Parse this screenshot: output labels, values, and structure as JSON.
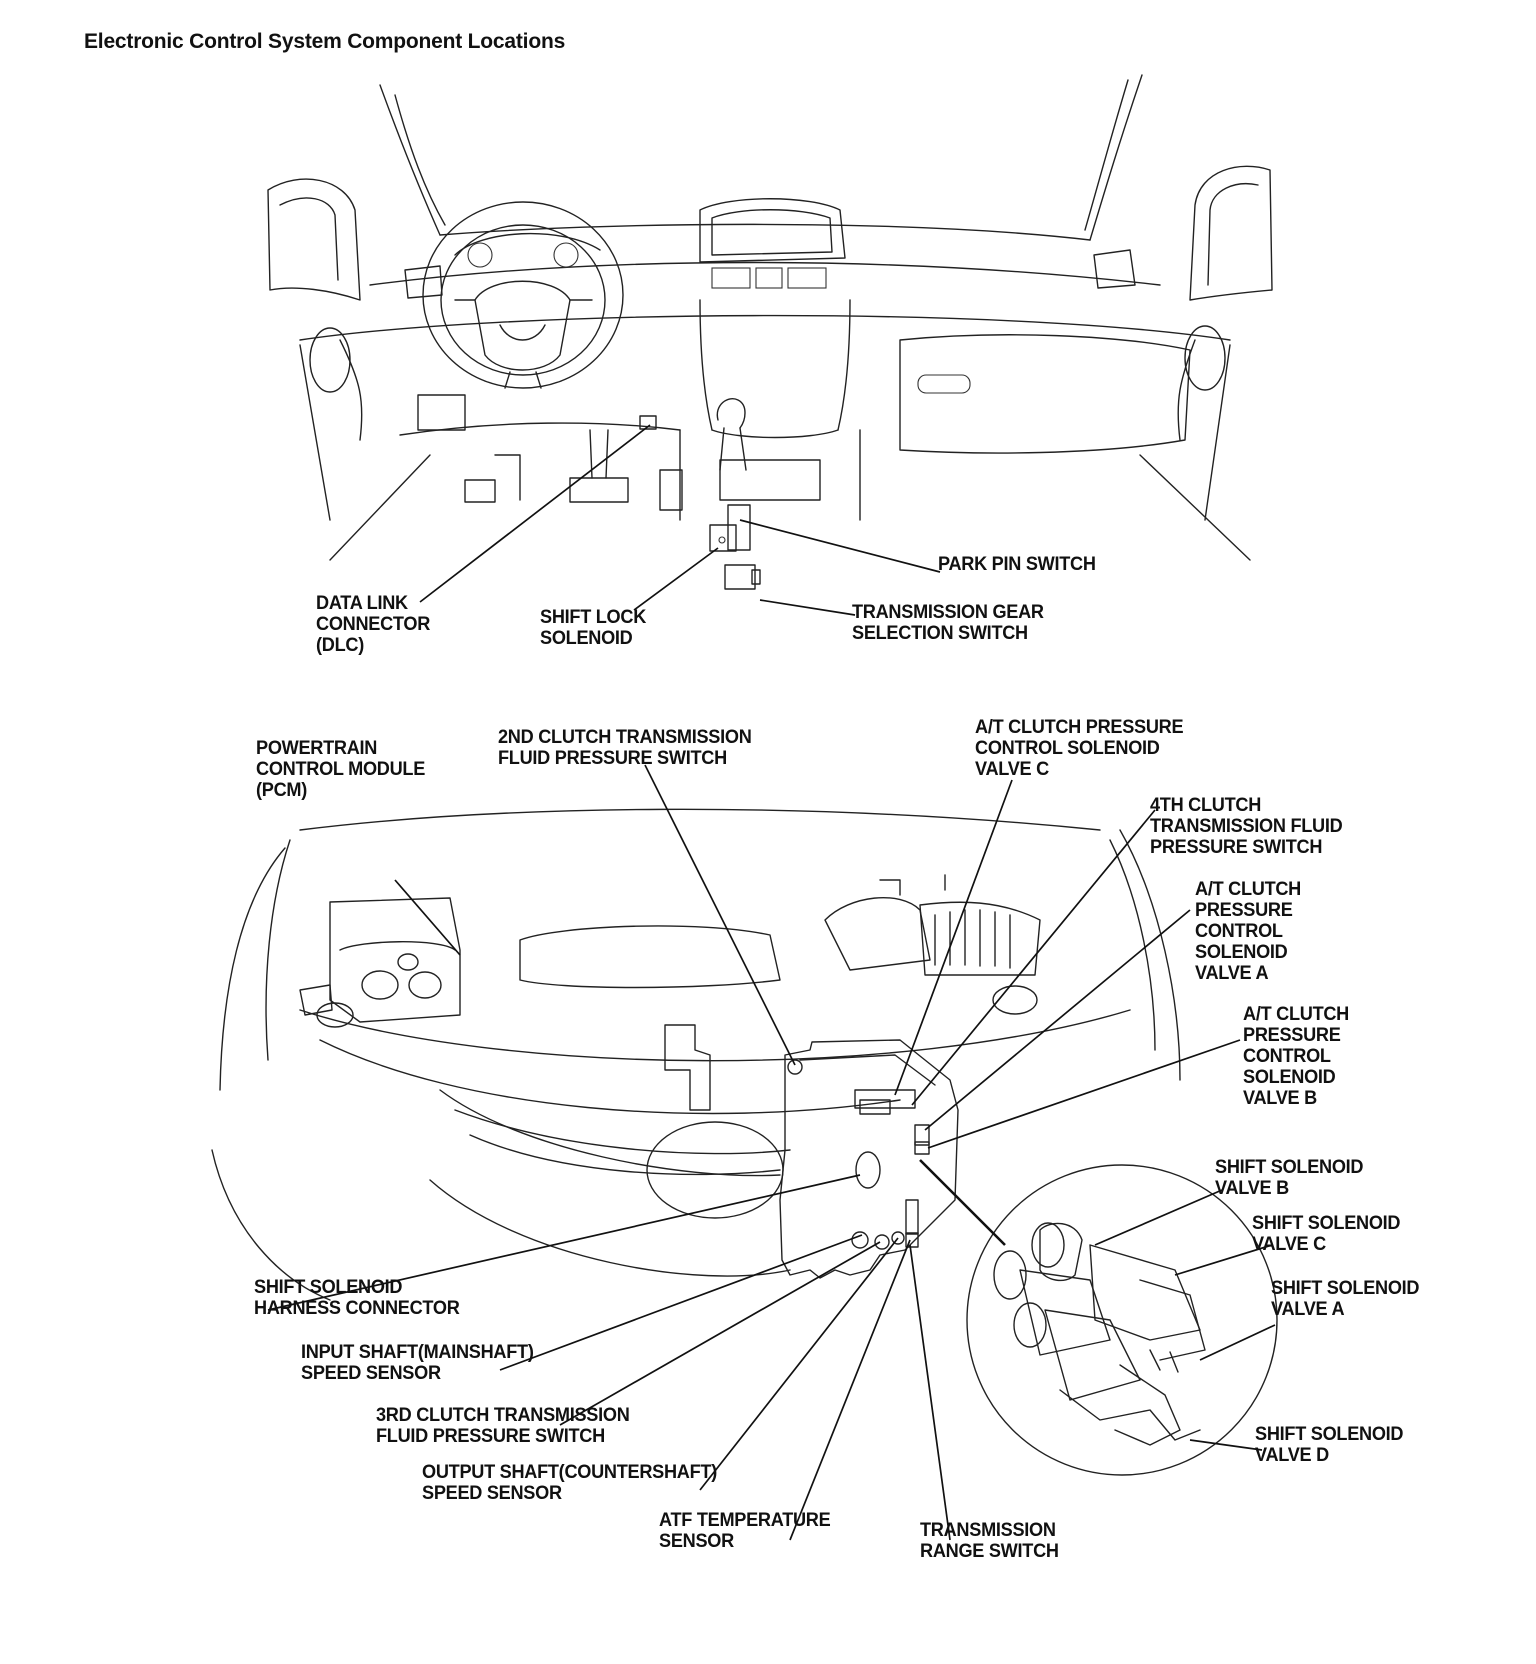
{
  "title": "Electronic Control System Component Locations",
  "labels": {
    "park_pin_switch": "PARK PIN SWITCH",
    "data_link_connector": "DATA LINK\nCONNECTOR\n(DLC)",
    "shift_lock_solenoid": "SHIFT LOCK\nSOLENOID",
    "transmission_gear_selection_switch": "TRANSMISSION GEAR\nSELECTION SWITCH",
    "pcm": "POWERTRAIN\nCONTROL MODULE\n(PCM)",
    "second_clutch_switch": "2ND CLUTCH TRANSMISSION\nFLUID PRESSURE SWITCH",
    "at_clutch_valve_c": "A/T CLUTCH PRESSURE\nCONTROL SOLENOID\nVALVE C",
    "fourth_clutch_switch": "4TH CLUTCH\nTRANSMISSION FLUID\nPRESSURE SWITCH",
    "at_clutch_valve_a": "A/T CLUTCH\nPRESSURE\nCONTROL\nSOLENOID\nVALVE A",
    "at_clutch_valve_b": "A/T CLUTCH\nPRESSURE\nCONTROL\nSOLENOID\nVALVE B",
    "shift_solenoid_b": "SHIFT SOLENOID\nVALVE B",
    "shift_solenoid_c": "SHIFT SOLENOID\nVALVE C",
    "shift_solenoid_a": "SHIFT SOLENOID\nVALVE A",
    "shift_solenoid_d": "SHIFT SOLENOID\nVALVE D",
    "shift_solenoid_harness": "SHIFT SOLENOID\nHARNESS CONNECTOR",
    "input_shaft_sensor": "INPUT SHAFT(MAINSHAFT)\nSPEED SENSOR",
    "third_clutch_switch": "3RD CLUTCH TRANSMISSION\nFLUID PRESSURE SWITCH",
    "output_shaft_sensor": "OUTPUT SHAFT(COUNTERSHAFT)\nSPEED SENSOR",
    "atf_temp_sensor": "ATF TEMPERATURE\nSENSOR",
    "transmission_range_switch": "TRANSMISSION\nRANGE SWITCH"
  }
}
